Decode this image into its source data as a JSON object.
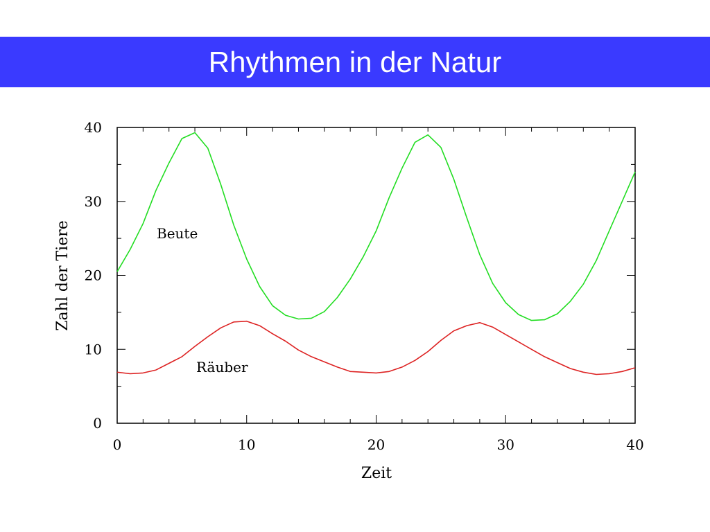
{
  "slide": {
    "title": "Rhythmen in der Natur",
    "title_bar_color": "#3a3aff"
  },
  "chart_data": {
    "type": "line",
    "xlabel": "Zeit",
    "ylabel": "Zahl der Tiere",
    "xlim": [
      0,
      40
    ],
    "ylim": [
      0,
      40
    ],
    "xticks": [
      "0",
      "10",
      "20",
      "30",
      "40"
    ],
    "yticks": [
      "0",
      "10",
      "20",
      "30",
      "40"
    ],
    "grid": false,
    "annotations": [
      {
        "text": "Beute",
        "series": "Beute"
      },
      {
        "text": "Räuber",
        "series": "Räuber"
      }
    ],
    "x": [
      0,
      1,
      2,
      3,
      4,
      5,
      6,
      7,
      8,
      9,
      10,
      11,
      12,
      13,
      14,
      15,
      16,
      17,
      18,
      19,
      20,
      21,
      22,
      23,
      24,
      25,
      26,
      27,
      28,
      29,
      30,
      31,
      32,
      33,
      34,
      35,
      36,
      37,
      38,
      39,
      40
    ],
    "series": [
      {
        "name": "Beute",
        "color": "#22dd22",
        "values": [
          20.5,
          23.5,
          27,
          31.5,
          35.2,
          38.5,
          39.3,
          37.2,
          32.3,
          26.8,
          22.2,
          18.5,
          15.9,
          14.6,
          14.1,
          14.2,
          15.1,
          17.0,
          19.5,
          22.5,
          26.0,
          30.5,
          34.5,
          38.0,
          39.0,
          37.3,
          33.0,
          27.8,
          22.8,
          18.9,
          16.3,
          14.7,
          13.9,
          14.0,
          14.8,
          16.5,
          18.8,
          22.0,
          26.0,
          30.0,
          34.0
        ]
      },
      {
        "name": "Räuber",
        "color": "#dd2222",
        "values": [
          6.9,
          6.7,
          6.8,
          7.2,
          8.1,
          9.0,
          10.4,
          11.7,
          12.9,
          13.7,
          13.8,
          13.2,
          12.1,
          11.1,
          9.9,
          9.0,
          8.3,
          7.6,
          7.0,
          6.9,
          6.8,
          7.0,
          7.6,
          8.5,
          9.7,
          11.2,
          12.5,
          13.2,
          13.6,
          13.0,
          12.0,
          11.0,
          10.0,
          9.0,
          8.2,
          7.4,
          6.9,
          6.6,
          6.7,
          7.0,
          7.5
        ]
      }
    ]
  }
}
